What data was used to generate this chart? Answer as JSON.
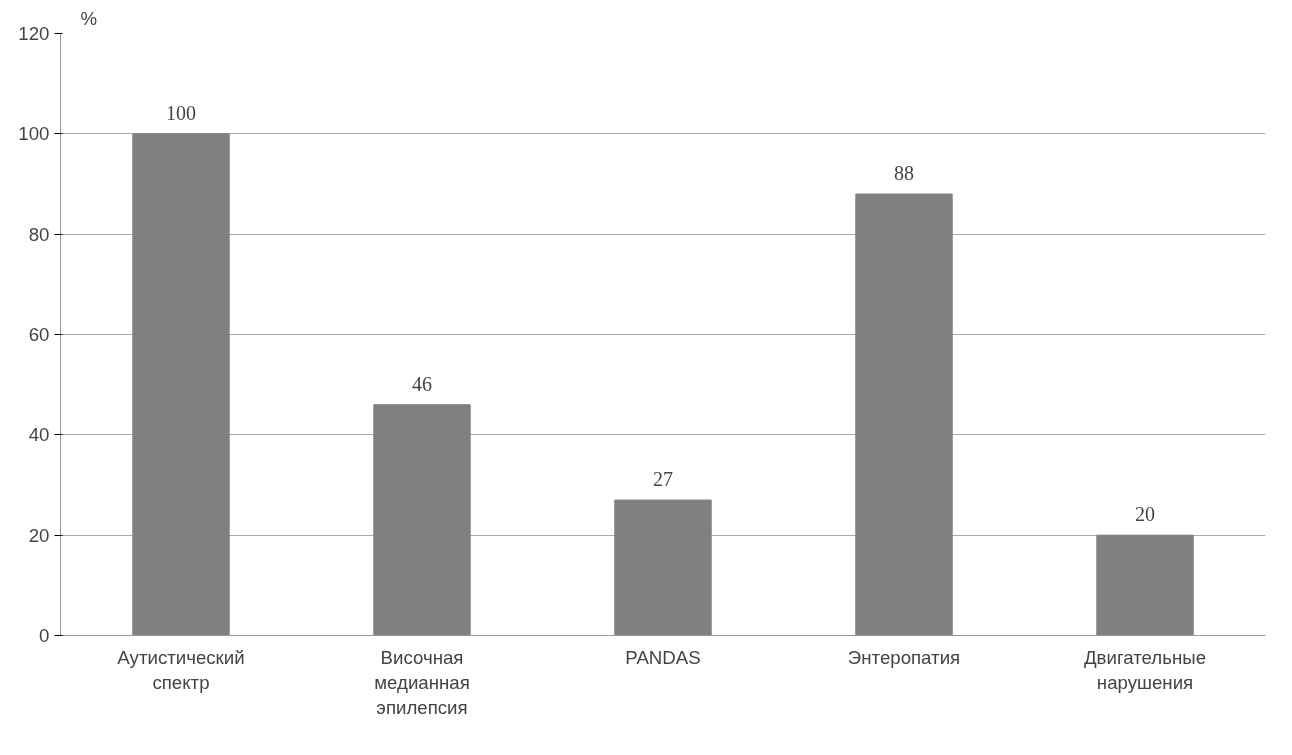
{
  "chart_data": {
    "type": "bar",
    "ylabel": "%",
    "categories": [
      "Аутистический спектр",
      "Височная медианная эпилепсия",
      "PANDAS",
      "Энтеропатия",
      "Двигательные нарушения"
    ],
    "values": [
      100,
      46,
      27,
      88,
      20
    ],
    "color": "#808080",
    "ylim": [
      0,
      120
    ],
    "yticks": [
      0,
      20,
      40,
      60,
      80,
      100,
      120
    ],
    "grid": "y",
    "data_labels": true
  }
}
